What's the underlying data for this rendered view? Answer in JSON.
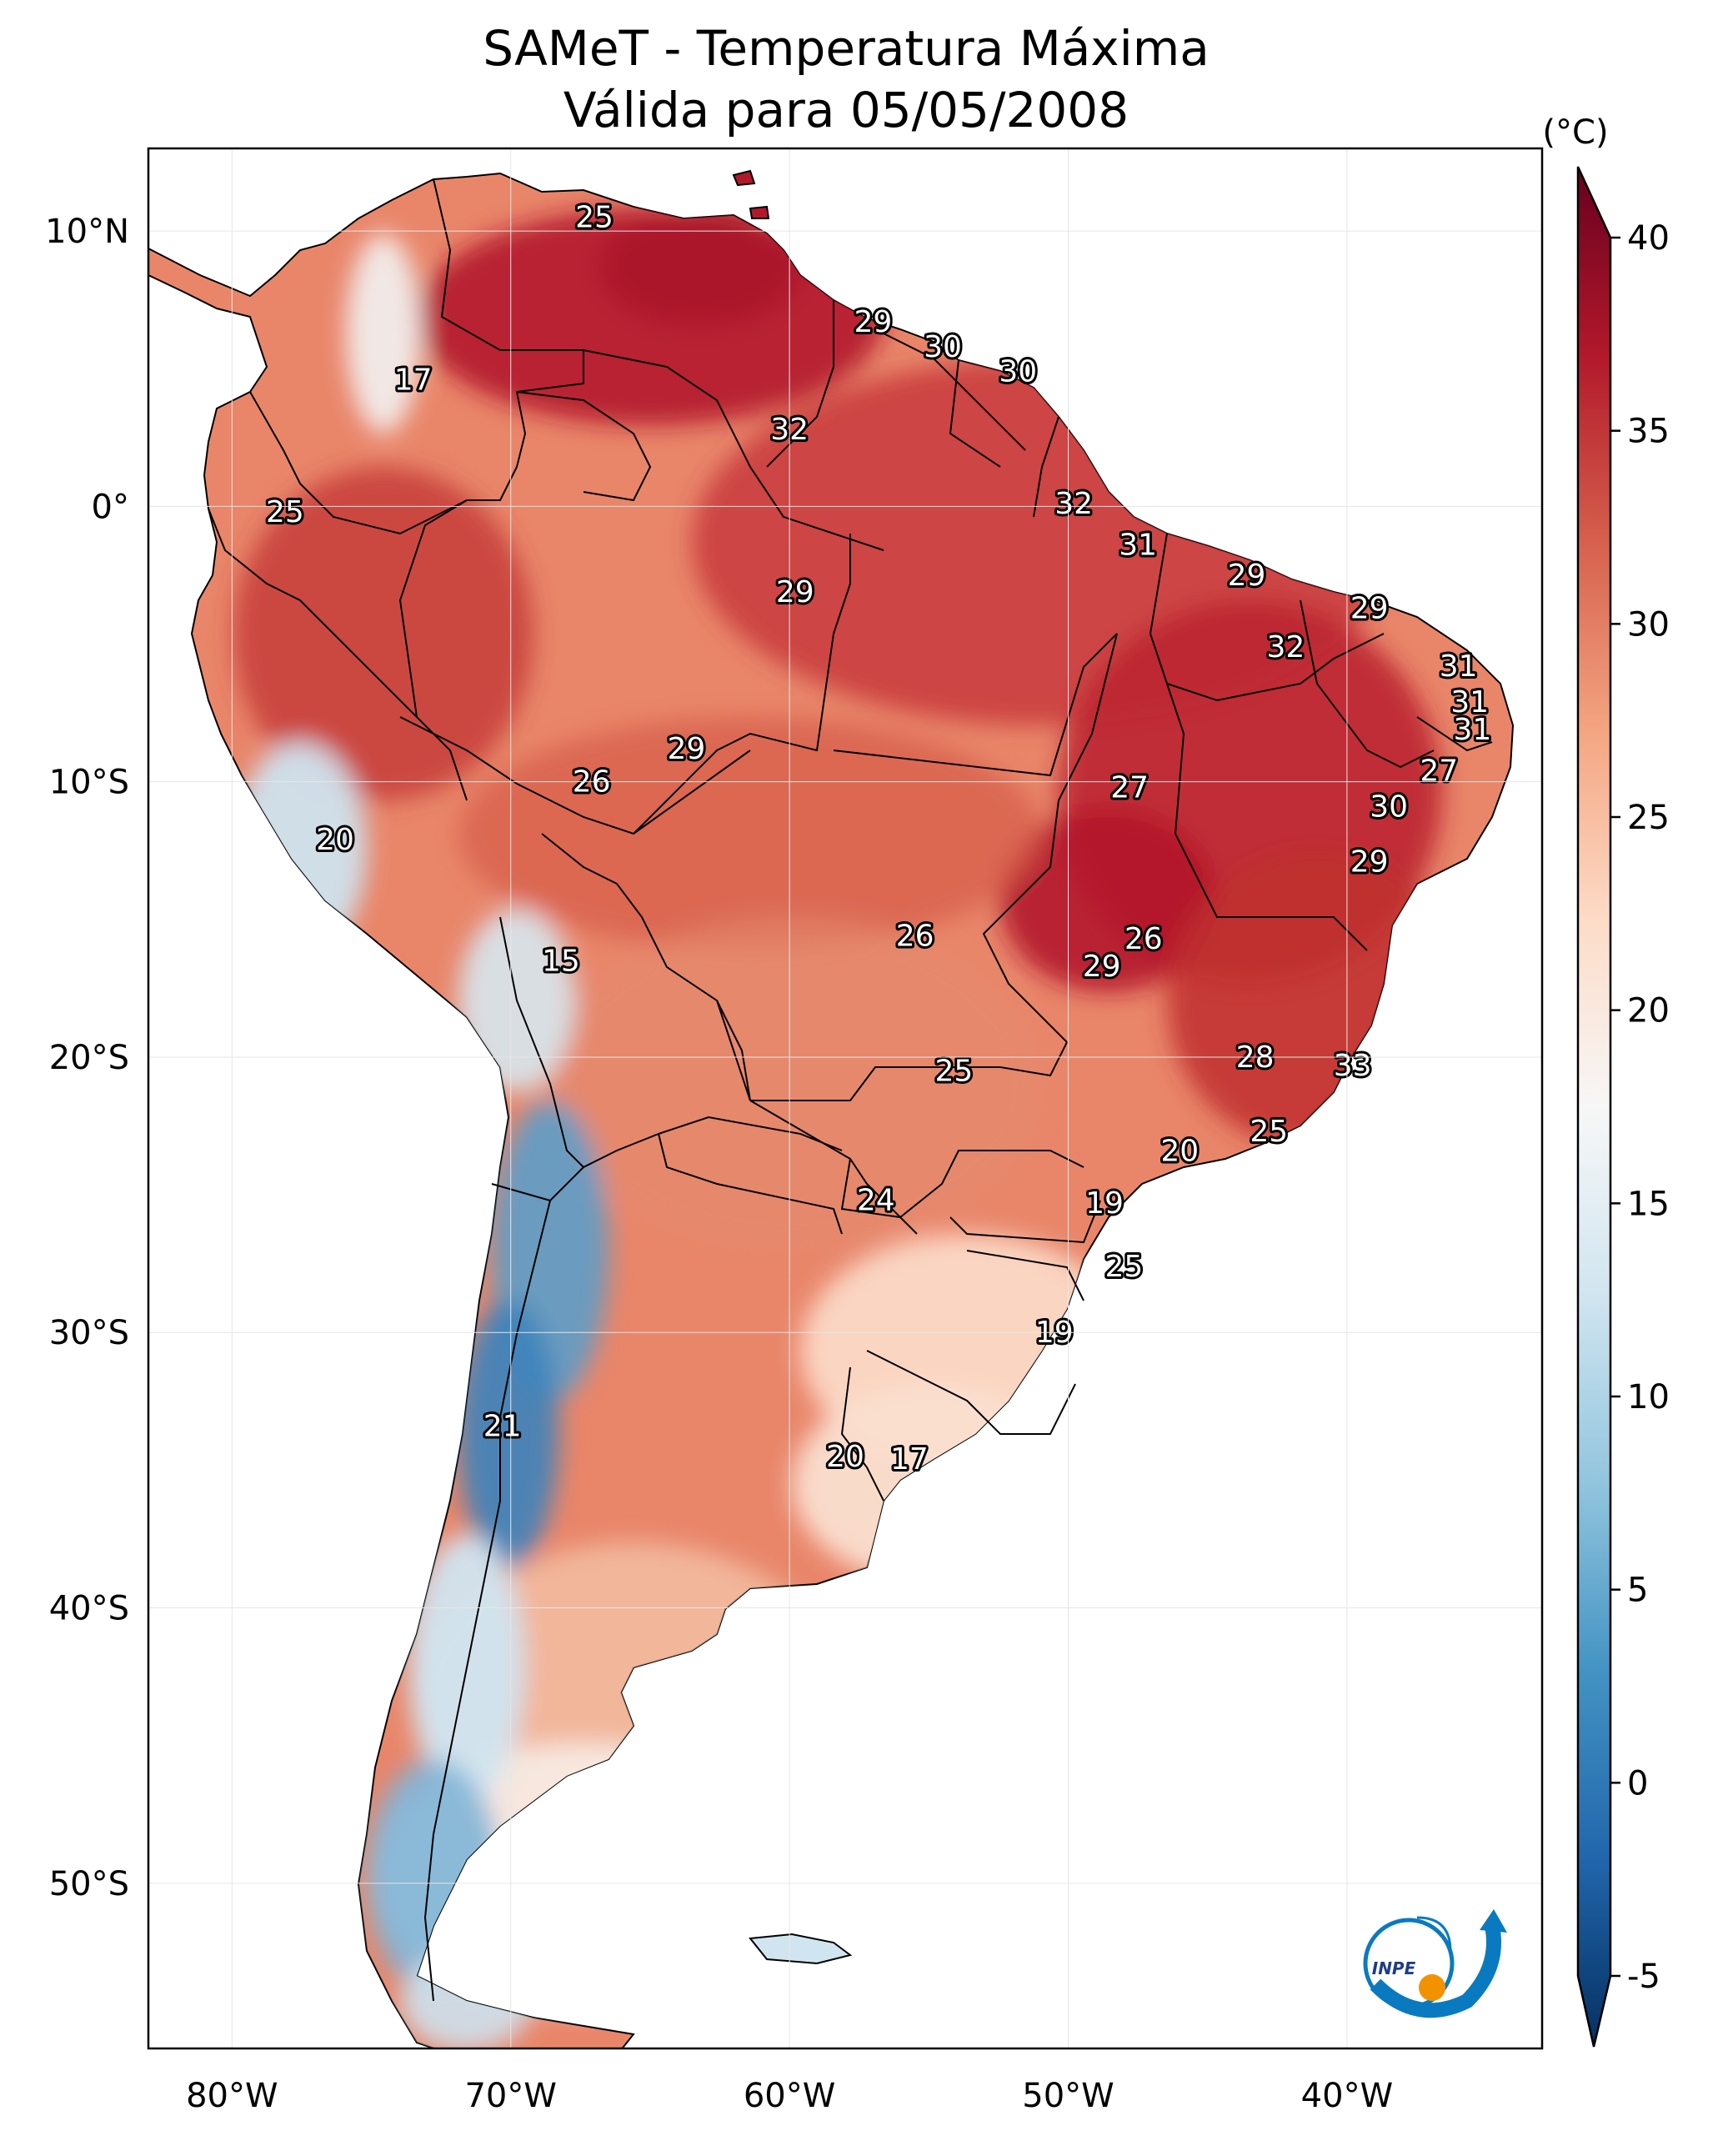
{
  "title_line1": "SAMeT - Temperatura Máxima",
  "title_line2": "Válida para 05/05/2008",
  "unit_label": "(°C)",
  "lon_ticks": [
    {
      "label": "80°W",
      "value": -80
    },
    {
      "label": "70°W",
      "value": -70
    },
    {
      "label": "60°W",
      "value": -60
    },
    {
      "label": "50°W",
      "value": -50
    },
    {
      "label": "40°W",
      "value": -40
    }
  ],
  "lat_ticks": [
    {
      "label": "10°N",
      "value": 10
    },
    {
      "label": "0°",
      "value": 0
    },
    {
      "label": "10°S",
      "value": -10
    },
    {
      "label": "20°S",
      "value": -20
    },
    {
      "label": "30°S",
      "value": -30
    },
    {
      "label": "40°S",
      "value": -40
    },
    {
      "label": "50°S",
      "value": -50
    }
  ],
  "map_extent": {
    "lon": [
      -83,
      -33
    ],
    "lat": [
      -56,
      13
    ]
  },
  "colorbar": {
    "ticks": [
      40,
      35,
      30,
      25,
      20,
      15,
      10,
      5,
      0,
      -5
    ],
    "range": [
      -5,
      40
    ],
    "colors": [
      "#053061",
      "#2166ac",
      "#4393c3",
      "#92c5de",
      "#d1e5f0",
      "#f7f7f7",
      "#fddbc7",
      "#f4a582",
      "#d6604d",
      "#b2182b",
      "#67001f"
    ]
  },
  "stations": [
    {
      "label": "25",
      "lon": -67,
      "lat": 10.5
    },
    {
      "label": "29",
      "lon": -57,
      "lat": 6.7
    },
    {
      "label": "30",
      "lon": -54.5,
      "lat": 5.8
    },
    {
      "label": "30",
      "lon": -51.8,
      "lat": 4.9
    },
    {
      "label": "17",
      "lon": -73.5,
      "lat": 4.6
    },
    {
      "label": "32",
      "lon": -60,
      "lat": 2.8
    },
    {
      "label": "32",
      "lon": -49.8,
      "lat": 0.1
    },
    {
      "label": "25",
      "lon": -78.1,
      "lat": -0.2
    },
    {
      "label": "31",
      "lon": -47.5,
      "lat": -1.4
    },
    {
      "label": "29",
      "lon": -43.6,
      "lat": -2.5
    },
    {
      "label": "29",
      "lon": -59.8,
      "lat": -3.1
    },
    {
      "label": "29",
      "lon": -39.2,
      "lat": -3.7
    },
    {
      "label": "32",
      "lon": -42.2,
      "lat": -5.1
    },
    {
      "label": "31",
      "lon": -36,
      "lat": -5.8
    },
    {
      "label": "31",
      "lon": -35.6,
      "lat": -7.1
    },
    {
      "label": "31",
      "lon": -35.5,
      "lat": -8.1
    },
    {
      "label": "29",
      "lon": -63.7,
      "lat": -8.8
    },
    {
      "label": "27",
      "lon": -36.7,
      "lat": -9.6
    },
    {
      "label": "26",
      "lon": -67.1,
      "lat": -10
    },
    {
      "label": "27",
      "lon": -47.8,
      "lat": -10.2
    },
    {
      "label": "30",
      "lon": -38.5,
      "lat": -10.9
    },
    {
      "label": "20",
      "lon": -76.3,
      "lat": -12.1
    },
    {
      "label": "29",
      "lon": -39.2,
      "lat": -12.9
    },
    {
      "label": "26",
      "lon": -55.5,
      "lat": -15.6
    },
    {
      "label": "26",
      "lon": -47.3,
      "lat": -15.7
    },
    {
      "label": "29",
      "lon": -48.8,
      "lat": -16.7
    },
    {
      "label": "15",
      "lon": -68.2,
      "lat": -16.5
    },
    {
      "label": "28",
      "lon": -43.3,
      "lat": -20
    },
    {
      "label": "33",
      "lon": -39.8,
      "lat": -20.3
    },
    {
      "label": "25",
      "lon": -54.1,
      "lat": -20.5
    },
    {
      "label": "25",
      "lon": -42.8,
      "lat": -22.7
    },
    {
      "label": "20",
      "lon": -46,
      "lat": -23.4
    },
    {
      "label": "19",
      "lon": -48.7,
      "lat": -25.3
    },
    {
      "label": "24",
      "lon": -56.9,
      "lat": -25.2
    },
    {
      "label": "25",
      "lon": -48,
      "lat": -27.6
    },
    {
      "label": "19",
      "lon": -50.5,
      "lat": -30
    },
    {
      "label": "21",
      "lon": -70.3,
      "lat": -33.4
    },
    {
      "label": "20",
      "lon": -58,
      "lat": -34.5
    },
    {
      "label": "17",
      "lon": -55.7,
      "lat": -34.6
    }
  ],
  "logo_text": "INPE"
}
